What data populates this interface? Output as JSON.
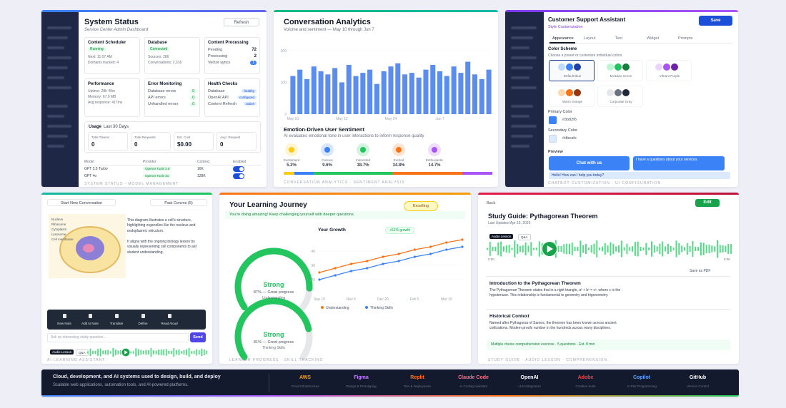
{
  "system_status": {
    "title": "System Status",
    "subtitle": "Service Center Admin Dashboard",
    "refresh": "Refresh",
    "cards": [
      {
        "title": "Content Scheduler",
        "badge": "Running",
        "lines": [
          "Next: 11:07 AM",
          "Domains tracked: 4"
        ]
      },
      {
        "title": "Database",
        "badge": "Connected",
        "lines": [
          "Sources: 286",
          "Conversations: 2,316"
        ]
      },
      {
        "title": "Content Processing",
        "rows": [
          [
            "Pending",
            72
          ],
          [
            "Processing",
            2
          ],
          [
            "Vector syncs",
            1
          ]
        ]
      },
      {
        "title": "Performance",
        "lines": [
          "Uptime: 28h 49m",
          "Memory: 67.0 MB",
          "Avg response: 417ms"
        ]
      },
      {
        "title": "Error Monitoring",
        "rows": [
          [
            "Database errors",
            0
          ],
          [
            "API errors",
            0
          ],
          [
            "Unhandled errors",
            0
          ]
        ]
      },
      {
        "title": "Health Checks",
        "rows": [
          [
            "Database",
            "healthy"
          ],
          [
            "OpenAI API",
            "configured"
          ],
          [
            "Content Refresh",
            "active"
          ]
        ]
      }
    ],
    "usage_title": "Usage",
    "usage_period": "Last 30 Days",
    "usage_stats": [
      {
        "label": "Total Tokens",
        "value": 0
      },
      {
        "label": "Total Requests",
        "value": 0
      },
      {
        "label": "Est. Cost",
        "value": "$0.00"
      },
      {
        "label": "Avg / Request",
        "value": 0
      }
    ],
    "models": {
      "headers": [
        "Model",
        "Provider",
        "Context",
        "Enabled"
      ],
      "rows": [
        [
          "GPT 3.5 Turbo",
          "OpenAI Tools 3.5",
          "16K"
        ],
        [
          "GPT 4o",
          "OpenAI Tools 4o",
          "128K"
        ]
      ]
    },
    "footer": "SYSTEM STATUS · MODEL MANAGEMENT"
  },
  "analytics": {
    "title": "Conversation Analytics",
    "subtitle": "Volume and sentiment — May 10 through Jun 7",
    "chart": {
      "type": "bar",
      "categories": [
        "May 10",
        null,
        null,
        null,
        null,
        null,
        null,
        "May 12",
        null,
        null,
        null,
        null,
        null,
        null,
        "May 24",
        null,
        null,
        null,
        null,
        null,
        null,
        "Jun 7",
        null,
        null,
        null,
        null,
        null,
        null,
        null
      ],
      "values": [
        120,
        140,
        110,
        150,
        135,
        125,
        145,
        100,
        155,
        120,
        130,
        140,
        95,
        135,
        150,
        160,
        125,
        130,
        115,
        140,
        155,
        135,
        120,
        150,
        130,
        165,
        125,
        110,
        140
      ],
      "color": "#5b8def",
      "ylim": [
        0,
        220
      ],
      "yticks": [
        0,
        100,
        200
      ]
    },
    "sentiment_title": "Emotion-Driven User Sentiment",
    "sentiment_subtitle": "AI evaluates emotional tone in user interactions to inform response quality",
    "emotions": [
      {
        "name": "Excitement",
        "value": 5.2,
        "value_label": "5.2%",
        "color": "#facc15"
      },
      {
        "name": "Curious",
        "value": 9.6,
        "value_label": "9.6%",
        "color": "#3b82f6"
      },
      {
        "name": "Interested",
        "value": 38.7,
        "value_label": "38.7%",
        "color": "#22c55e"
      },
      {
        "name": "Excited",
        "value": 34.8,
        "value_label": "34.8%",
        "color": "#f97316"
      },
      {
        "name": "Enthusiastic",
        "value": 14.7,
        "value_label": "14.7%",
        "color": "#a855f7"
      }
    ],
    "footer": "CONVERSATION ANALYTICS · SENTIMENT ANALYSIS"
  },
  "support": {
    "title": "Customer Support Assistant",
    "subtitle": "Style Customization",
    "save": "Save",
    "tabs": [
      "Appearance",
      "Layout",
      "Text",
      "Widget",
      "Prompts"
    ],
    "scheme_title": "Color Scheme",
    "scheme_hint": "Choose a preset or customize individual colors",
    "presets": [
      {
        "name": "Default Blue",
        "colors": [
          "#bfdbfe",
          "#3b82f6",
          "#1e40af"
        ]
      },
      {
        "name": "Meadow Green",
        "colors": [
          "#bbf7d0",
          "#22c55e",
          "#15803d"
        ]
      },
      {
        "name": "Vibrant Purple",
        "colors": [
          "#e9d5ff",
          "#a855f7",
          "#6b21a8"
        ]
      },
      {
        "name": "Warm Orange",
        "colors": [
          "#fed7aa",
          "#f97316",
          "#9a3412"
        ]
      },
      {
        "name": "Corporate Gray",
        "colors": [
          "#e5e7eb",
          "#6b7280",
          "#1f2937"
        ]
      }
    ],
    "primary_label": "Primary Color",
    "primary": "#3b82f6",
    "secondary_label": "Secondary Color",
    "secondary": "#dbeafe",
    "preview": "Preview",
    "chat_button": "Chat with us",
    "user_msg": "I have a questions about your services.",
    "bot_msg": "Hello! How can I help you today?",
    "footer": "CHATBOT CUSTOMIZATION · UI CONFIGURATION"
  },
  "assistant": {
    "new": "Start New Conversation",
    "past": "Past Convos (5)",
    "diagram_labels": [
      "Nucleus",
      "Ribosome",
      "Cytoplasm",
      "Lysosome",
      "Cell membrane"
    ],
    "description": [
      "This diagram illustrates a cell's structure, highlighting organelles like the nucleus and endoplasmic reticulum.",
      "It aligns with the ongoing biology lesson by visually representing cell components to aid student understanding."
    ],
    "tools": [
      "New Note",
      "Add to Note",
      "Translate",
      "Define",
      "Read Aloud"
    ],
    "input": "Ask an interesting study question...",
    "send": "Send",
    "audio": "Audio Lesson",
    "qa": "Q&A",
    "footer": "AI LEARNING ASSISTANT"
  },
  "journey": {
    "title": "Your Learning Journey",
    "badge": "Excelling",
    "message": "You're doing amazing! Keep challenging yourself with deeper questions.",
    "gauges": [
      {
        "level": "Strong",
        "value": 87,
        "label": "87% — Great progress",
        "skill": "Understanding",
        "color": "#22c55e"
      },
      {
        "level": "Strong",
        "value": 81,
        "label": "81% — Great progress",
        "skill": "Thinking Skills",
        "color": "#22c55e"
      }
    ],
    "growth": {
      "type": "line",
      "title": "Your Growth",
      "badge": "+61% growth",
      "categories": [
        "Sep 10",
        null,
        "Nov 5",
        null,
        "Dec 20",
        null,
        "Feb 5",
        null,
        "Mar 10",
        null
      ],
      "series": [
        {
          "name": "Understanding",
          "color": "#f97316",
          "values": [
            25,
            28,
            31,
            33,
            36,
            38,
            41,
            43,
            46,
            48
          ]
        },
        {
          "name": "Thinking Skills",
          "color": "#3b82f6",
          "values": [
            20,
            23,
            26,
            28,
            31,
            33,
            36,
            38,
            41,
            43
          ]
        }
      ],
      "ylim": [
        10,
        50
      ],
      "yticks": [
        20,
        30,
        40
      ]
    },
    "footer": "LEARNER PROGRESS · SKILL TRACKING"
  },
  "study": {
    "back": "Back",
    "edit": "Edit",
    "title": "Study Guide: Pythagorean Theorem",
    "updated": "Last Updated Apr 15, 2025",
    "audio": "Audio Lesson",
    "qa": "Q&A",
    "time_start": "0:00",
    "time_end": "5:00",
    "save_pdf": "Save as PDF",
    "sections": [
      {
        "heading": "Introduction to the Pythagorean Theorem",
        "body": "The Pythagorean Theorem states that in a right triangle, a² + b² = c², where c is the hypotenuse. This relationship is fundamental to geometry and trigonometry."
      },
      {
        "heading": "Historical Context",
        "body": "Named after Pythagoras of Samos, the theorem has been known across ancient civilizations. Modern proofs number in the hundreds across many disciplines."
      }
    ],
    "exercise": "Multiple choice comprehension exercise · 5 questions · Est. 8 min",
    "footer": "STUDY GUIDE · AUDIO LESSON · COMPREHENSION"
  },
  "tools": {
    "headline": "Cloud, development, and AI systems used to design, build, and deploy",
    "subline": "Scalable web applications, automation tools, and AI-powered platforms.",
    "items": [
      {
        "name": "AWS",
        "desc": "Cloud Infrastructure",
        "color": "#f59e0b"
      },
      {
        "name": "Figma",
        "desc": "Design & Prototyping",
        "color": "#c084fc"
      },
      {
        "name": "Replit",
        "desc": "Dev & Deployment",
        "color": "#f97316"
      },
      {
        "name": "Claude Code",
        "desc": "AI Coding Assistant",
        "color": "#fb7185"
      },
      {
        "name": "OpenAI",
        "desc": "LLM Integration",
        "color": "#ffffff"
      },
      {
        "name": "Adobe",
        "desc": "Creative Suite",
        "color": "#ef4444"
      },
      {
        "name": "Copilot",
        "desc": "AI Pair Programming",
        "color": "#60a5fa"
      },
      {
        "name": "GitHub",
        "desc": "Version Control",
        "color": "#ffffff"
      }
    ]
  }
}
